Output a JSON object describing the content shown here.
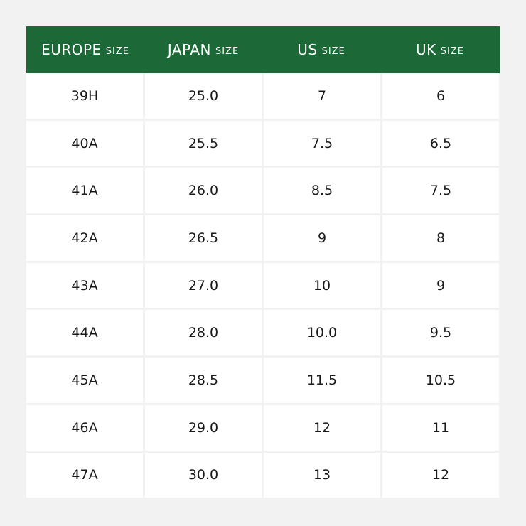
{
  "table": {
    "headers": [
      {
        "main": "EUROPE",
        "sub": "SIZE"
      },
      {
        "main": "JAPAN",
        "sub": "SIZE"
      },
      {
        "main": "US",
        "sub": "SIZE"
      },
      {
        "main": "UK",
        "sub": "SIZE"
      }
    ],
    "rows": [
      [
        "39H",
        "25.0",
        "7",
        "6"
      ],
      [
        "40A",
        "25.5",
        "7.5",
        "6.5"
      ],
      [
        "41A",
        "26.0",
        "8.5",
        "7.5"
      ],
      [
        "42A",
        "26.5",
        "9",
        "8"
      ],
      [
        "43A",
        "27.0",
        "10",
        "9"
      ],
      [
        "44A",
        "28.0",
        "10.0",
        "9.5"
      ],
      [
        "45A",
        "28.5",
        "11.5",
        "10.5"
      ],
      [
        "46A",
        "29.0",
        "12",
        "11"
      ],
      [
        "47A",
        "30.0",
        "13",
        "12"
      ]
    ]
  },
  "colors": {
    "header_bg": "#1c6837",
    "header_text": "#ffffff",
    "page_bg": "#f2f2f2",
    "cell_bg": "#ffffff"
  }
}
